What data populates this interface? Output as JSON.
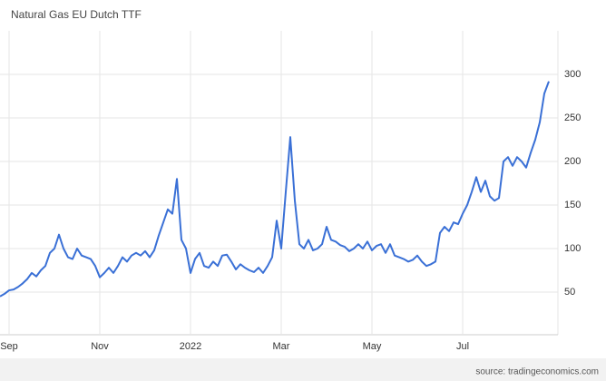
{
  "chart_data": {
    "type": "line",
    "title": "Natural Gas EU Dutch TTF",
    "source": "source: tradingeconomics.com",
    "categories": [
      null,
      null,
      "Sep",
      null,
      null,
      null,
      null,
      null,
      null,
      null,
      null,
      null,
      null,
      null,
      null,
      null,
      null,
      null,
      null,
      null,
      null,
      null,
      "Nov",
      null,
      null,
      null,
      null,
      null,
      null,
      null,
      null,
      null,
      null,
      null,
      null,
      null,
      null,
      null,
      null,
      null,
      null,
      null,
      "2022",
      null,
      null,
      null,
      null,
      null,
      null,
      null,
      null,
      null,
      null,
      null,
      null,
      null,
      null,
      null,
      null,
      null,
      null,
      null,
      "Mar",
      null,
      null,
      null,
      null,
      null,
      null,
      null,
      null,
      null,
      null,
      null,
      null,
      null,
      null,
      null,
      null,
      null,
      null,
      null,
      "May",
      null,
      null,
      null,
      null,
      null,
      null,
      null,
      null,
      null,
      null,
      null,
      null,
      null,
      null,
      null,
      null,
      null,
      null,
      null,
      "Jul",
      null,
      null,
      null,
      null,
      null,
      null,
      null,
      null,
      null,
      null,
      null,
      null,
      null,
      null,
      null,
      null,
      null,
      null,
      null
    ],
    "values": [
      45,
      48,
      52,
      53,
      56,
      60,
      65,
      72,
      68,
      75,
      80,
      95,
      100,
      116,
      100,
      90,
      88,
      100,
      92,
      90,
      88,
      80,
      67,
      72,
      78,
      72,
      80,
      90,
      85,
      92,
      95,
      92,
      97,
      90,
      98,
      115,
      130,
      145,
      140,
      180,
      110,
      100,
      72,
      88,
      95,
      80,
      78,
      85,
      80,
      92,
      93,
      85,
      76,
      82,
      78,
      75,
      73,
      78,
      72,
      80,
      90,
      132,
      100,
      165,
      228,
      155,
      105,
      100,
      110,
      98,
      100,
      105,
      125,
      110,
      108,
      104,
      102,
      97,
      100,
      105,
      100,
      108,
      98,
      103,
      105,
      95,
      105,
      92,
      90,
      88,
      85,
      87,
      92,
      85,
      80,
      82,
      85,
      118,
      125,
      120,
      130,
      128,
      140,
      150,
      165,
      182,
      165,
      178,
      160,
      155,
      158,
      200,
      205,
      195,
      205,
      200,
      193,
      210,
      225,
      245,
      278,
      292
    ],
    "color": "#3a70d6",
    "ylim": [
      0,
      350
    ],
    "yticks": [
      50,
      100,
      150,
      200,
      250,
      300
    ],
    "grid": true
  }
}
